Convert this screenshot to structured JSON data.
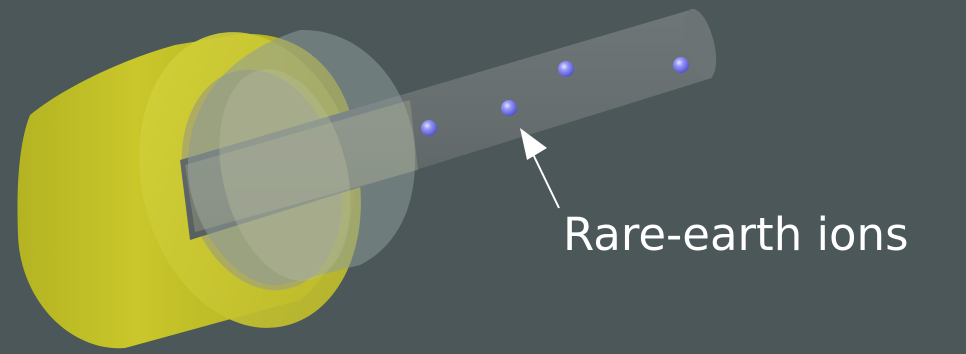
{
  "label": {
    "text": "Rare-earth ions"
  },
  "colors": {
    "background": "#4b5758",
    "ferrule_yellow": "#c8c62a",
    "fiber_gray": "#6b7273",
    "sleeve_gray": "#8f9899",
    "ion_blue": "#6c6cf2",
    "arrow": "#ffffff",
    "label_text": "#ffffff"
  },
  "ions": {
    "count": 4
  }
}
